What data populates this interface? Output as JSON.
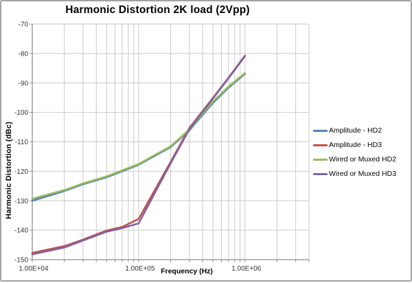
{
  "window": {
    "background": "#ffffff",
    "frame_border_color": "#a2a2a2"
  },
  "chart_data": {
    "type": "line",
    "title": "Harmonic Distortion 2K load (2Vpp)",
    "xlabel": "Frequency (Hz)",
    "ylabel": "Harmonic Distortion (dBc)",
    "x_scale": "log",
    "xlim": [
      10000,
      4000000
    ],
    "ylim": [
      -150,
      -70
    ],
    "y_ticks": [
      -70,
      -80,
      -90,
      -100,
      -110,
      -120,
      -130,
      -140,
      -150
    ],
    "x_tick_labels": [
      {
        "value": 10000,
        "label": "1.00E+04"
      },
      {
        "value": 100000,
        "label": "1.00E+05"
      },
      {
        "value": 1000000,
        "label": "1.00E+06"
      }
    ],
    "grid": true,
    "minor_log_gridlines": true,
    "legend_position": "right",
    "x": [
      10000,
      20000,
      30000,
      50000,
      70000,
      100000,
      200000,
      300000,
      500000,
      700000,
      1000000
    ],
    "series": [
      {
        "name": "Amplitude - HD2",
        "color": "#4F81BD",
        "values": [
          -130.0,
          -126.7,
          -124.4,
          -122.0,
          -120.0,
          -117.8,
          -111.8,
          -106.1,
          -96.8,
          -91.6,
          -86.9
        ]
      },
      {
        "name": "Amplitude - HD3",
        "color": "#C0504D",
        "values": [
          -147.7,
          -145.4,
          -143.2,
          -140.1,
          -138.9,
          -136.2,
          -116.8,
          -105.3,
          -95.1,
          -88.2,
          -80.7
        ]
      },
      {
        "name": "Wired or Muxed HD2",
        "color": "#9BBB59",
        "values": [
          -129.3,
          -126.4,
          -124.1,
          -121.7,
          -119.7,
          -117.5,
          -111.5,
          -105.8,
          -96.3,
          -91.2,
          -86.6
        ]
      },
      {
        "name": "Wired or Muxed HD3",
        "color": "#8064A2",
        "values": [
          -148.2,
          -145.9,
          -143.5,
          -140.5,
          -139.3,
          -137.7,
          -117.3,
          -105.7,
          -95.3,
          -88.4,
          -80.9
        ]
      }
    ],
    "styles": {
      "gridline_color": "#c9c9c9",
      "axis_color": "#8e8e8e",
      "tick_label_color": "#333333",
      "line_width": 2.6
    }
  }
}
